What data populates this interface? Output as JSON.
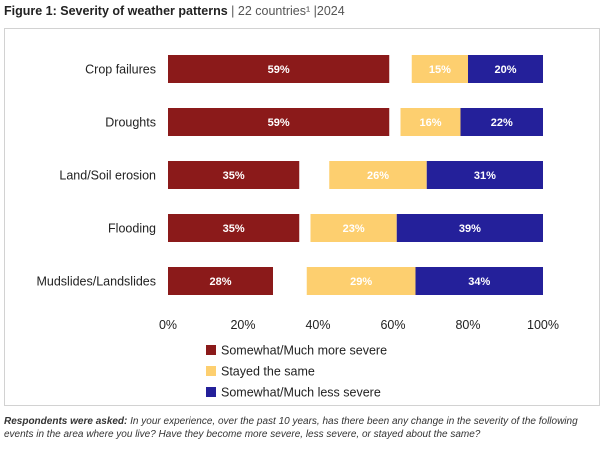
{
  "title": {
    "main": "Figure 1: Severity of weather patterns",
    "sep1": "|",
    "countries": "22 countries¹",
    "sep2": "|",
    "year": "2024"
  },
  "note": {
    "lead": "Respondents were asked:",
    "text": "In your experience, over the past 10 years, has there been any change in the severity of the following events in the area where you live? Have they become more severe, less severe, or stayed about the same?"
  },
  "colors": {
    "more_severe": "#8b1a1a",
    "same": "#fdcf6f",
    "less_severe": "#24209a"
  },
  "chart_data": {
    "type": "bar",
    "orientation": "horizontal",
    "stacked": true,
    "categories": [
      "Crop failures",
      "Droughts",
      "Land/Soil erosion",
      "Flooding",
      "Mudslides/Landslides"
    ],
    "series": [
      {
        "name": "Somewhat/Much more severe",
        "values": [
          59,
          59,
          35,
          35,
          28
        ],
        "labels": [
          "59%",
          "59%",
          "35%",
          "35%",
          "28%"
        ],
        "color": "#8b1a1a",
        "label_color": "#ffffff"
      },
      {
        "name": "Stayed the same",
        "values": [
          15,
          16,
          26,
          23,
          29
        ],
        "labels": [
          "15%",
          "16%",
          "26%",
          "23%",
          "29%"
        ],
        "color": "#fdcf6f",
        "label_color": "#ffffff"
      },
      {
        "name": "Somewhat/Much less severe",
        "values": [
          20,
          22,
          31,
          39,
          34
        ],
        "labels": [
          "20%",
          "22%",
          "31%",
          "39%",
          "34%"
        ],
        "color": "#24209a",
        "label_color": "#ffffff"
      }
    ],
    "xticks": [
      "0%",
      "20%",
      "40%",
      "60%",
      "80%",
      "100%"
    ],
    "xlim": [
      0,
      100
    ],
    "grid": false,
    "legend_position": "bottom"
  }
}
